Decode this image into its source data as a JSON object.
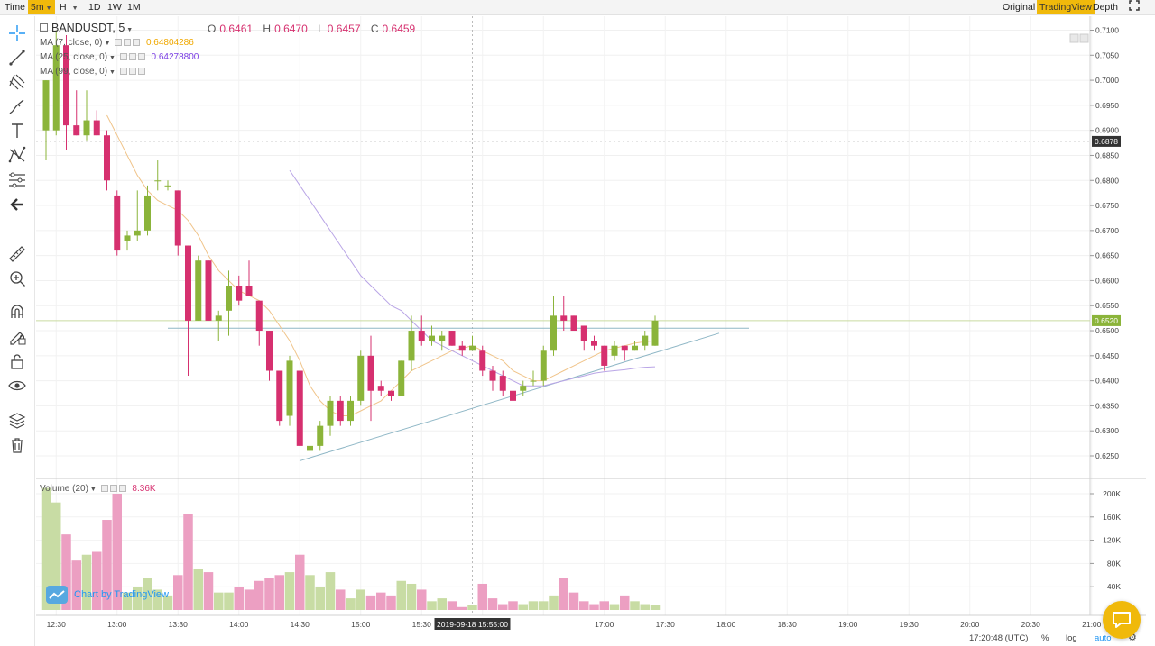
{
  "topbar": {
    "time_label": "Time",
    "intervals": [
      "5m",
      "H",
      "1D",
      "1W",
      "1M"
    ],
    "active_interval": "5m",
    "views": [
      "Original",
      "TradingView",
      "Depth"
    ],
    "active_view": "TradingView"
  },
  "legend": {
    "symbol": "BANDUSDT, 5",
    "ohlc": [
      {
        "k": "O",
        "v": "0.6461"
      },
      {
        "k": "H",
        "v": "0.6470"
      },
      {
        "k": "L",
        "v": "0.6457"
      },
      {
        "k": "C",
        "v": "0.6459"
      }
    ],
    "ma": [
      {
        "label": "MA (7, close, 0)",
        "value": "0.64804286",
        "color": "#f0a800"
      },
      {
        "label": "MA (25, close, 0)",
        "value": "0.64278800",
        "color": "#7b3fe4"
      },
      {
        "label": "MA (99, close, 0)",
        "value": "",
        "color": "#555555"
      }
    ],
    "volume_label": "Volume (20)",
    "volume_value": "8.36K"
  },
  "watermark": "Chart by TradingView",
  "crosshair_date": "2019-09-18 15:55:00",
  "bottombar": {
    "clock": "17:20:48 (UTC)",
    "percent": "%",
    "log": "log",
    "auto": "auto"
  },
  "colors": {
    "up": "#8bb43a",
    "down": "#d6306f",
    "up_vol": "#c8dca4",
    "down_vol": "#ec9fc2",
    "ma7": "#f0c48a",
    "ma25": "#b9a5e6",
    "accent": "#f0b90b"
  },
  "chart_data": {
    "type": "candlestick",
    "price_axis": {
      "ticks": [
        "0.7100",
        "0.7050",
        "0.7000",
        "0.6950",
        "0.6900",
        "0.6850",
        "0.6800",
        "0.6750",
        "0.6700",
        "0.6650",
        "0.6600",
        "0.6550",
        "0.6500",
        "0.6450",
        "0.6400",
        "0.6350",
        "0.6300",
        "0.6250"
      ],
      "range": [
        0.6225,
        0.7125
      ],
      "badges": [
        {
          "value": "0.6878",
          "kind": "crosshair"
        },
        {
          "value": "0.6520",
          "kind": "last"
        }
      ]
    },
    "volume_axis": {
      "ticks": [
        "200K",
        "160K",
        "120K",
        "80K",
        "40K"
      ],
      "range": [
        0,
        220000
      ]
    },
    "time_axis": {
      "ticks": [
        "12:30",
        "13:00",
        "13:30",
        "14:00",
        "14:30",
        "15:00",
        "15:30",
        "17:00",
        "17:30",
        "18:00",
        "18:30",
        "19:00",
        "19:30",
        "20:00",
        "20:30",
        "21:00"
      ],
      "start": "12:25",
      "interval_minutes": 5
    },
    "candles": [
      {
        "o": 0.69,
        "h": 0.7,
        "l": 0.684,
        "c": 0.7,
        "v": 210000
      },
      {
        "o": 0.69,
        "h": 0.71,
        "l": 0.689,
        "c": 0.707,
        "v": 185000
      },
      {
        "o": 0.707,
        "h": 0.709,
        "l": 0.686,
        "c": 0.691,
        "v": 130000
      },
      {
        "o": 0.691,
        "h": 0.698,
        "l": 0.689,
        "c": 0.689,
        "v": 85000
      },
      {
        "o": 0.689,
        "h": 0.698,
        "l": 0.688,
        "c": 0.692,
        "v": 95000
      },
      {
        "o": 0.692,
        "h": 0.694,
        "l": 0.689,
        "c": 0.689,
        "v": 100000
      },
      {
        "o": 0.689,
        "h": 0.69,
        "l": 0.678,
        "c": 0.68,
        "v": 155000
      },
      {
        "o": 0.677,
        "h": 0.678,
        "l": 0.665,
        "c": 0.666,
        "v": 200000
      },
      {
        "o": 0.668,
        "h": 0.67,
        "l": 0.666,
        "c": 0.669,
        "v": 30000
      },
      {
        "o": 0.669,
        "h": 0.678,
        "l": 0.668,
        "c": 0.67,
        "v": 40000
      },
      {
        "o": 0.67,
        "h": 0.679,
        "l": 0.669,
        "c": 0.677,
        "v": 55000
      },
      {
        "o": 0.68,
        "h": 0.684,
        "l": 0.678,
        "c": 0.68,
        "v": 35000
      },
      {
        "o": 0.679,
        "h": 0.68,
        "l": 0.678,
        "c": 0.679,
        "v": 25000
      },
      {
        "o": 0.678,
        "h": 0.678,
        "l": 0.665,
        "c": 0.667,
        "v": 60000
      },
      {
        "o": 0.667,
        "h": 0.667,
        "l": 0.641,
        "c": 0.652,
        "v": 165000
      },
      {
        "o": 0.652,
        "h": 0.665,
        "l": 0.652,
        "c": 0.664,
        "v": 70000
      },
      {
        "o": 0.664,
        "h": 0.664,
        "l": 0.652,
        "c": 0.652,
        "v": 65000
      },
      {
        "o": 0.652,
        "h": 0.654,
        "l": 0.648,
        "c": 0.653,
        "v": 30000
      },
      {
        "o": 0.654,
        "h": 0.662,
        "l": 0.649,
        "c": 0.659,
        "v": 30000
      },
      {
        "o": 0.659,
        "h": 0.661,
        "l": 0.655,
        "c": 0.656,
        "v": 40000
      },
      {
        "o": 0.659,
        "h": 0.664,
        "l": 0.657,
        "c": 0.657,
        "v": 35000
      },
      {
        "o": 0.656,
        "h": 0.656,
        "l": 0.647,
        "c": 0.65,
        "v": 50000
      },
      {
        "o": 0.65,
        "h": 0.65,
        "l": 0.64,
        "c": 0.642,
        "v": 55000
      },
      {
        "o": 0.642,
        "h": 0.642,
        "l": 0.631,
        "c": 0.632,
        "v": 60000
      },
      {
        "o": 0.633,
        "h": 0.645,
        "l": 0.631,
        "c": 0.644,
        "v": 65000
      },
      {
        "o": 0.642,
        "h": 0.642,
        "l": 0.627,
        "c": 0.627,
        "v": 95000
      },
      {
        "o": 0.626,
        "h": 0.628,
        "l": 0.625,
        "c": 0.627,
        "v": 60000
      },
      {
        "o": 0.627,
        "h": 0.632,
        "l": 0.626,
        "c": 0.631,
        "v": 40000
      },
      {
        "o": 0.631,
        "h": 0.637,
        "l": 0.629,
        "c": 0.636,
        "v": 65000
      },
      {
        "o": 0.636,
        "h": 0.637,
        "l": 0.631,
        "c": 0.632,
        "v": 35000
      },
      {
        "o": 0.632,
        "h": 0.637,
        "l": 0.631,
        "c": 0.636,
        "v": 20000
      },
      {
        "o": 0.636,
        "h": 0.646,
        "l": 0.635,
        "c": 0.645,
        "v": 35000
      },
      {
        "o": 0.645,
        "h": 0.649,
        "l": 0.632,
        "c": 0.638,
        "v": 25000
      },
      {
        "o": 0.639,
        "h": 0.64,
        "l": 0.637,
        "c": 0.638,
        "v": 30000
      },
      {
        "o": 0.638,
        "h": 0.638,
        "l": 0.636,
        "c": 0.637,
        "v": 25000
      },
      {
        "o": 0.637,
        "h": 0.644,
        "l": 0.637,
        "c": 0.644,
        "v": 50000
      },
      {
        "o": 0.644,
        "h": 0.653,
        "l": 0.642,
        "c": 0.65,
        "v": 45000
      },
      {
        "o": 0.65,
        "h": 0.653,
        "l": 0.647,
        "c": 0.648,
        "v": 35000
      },
      {
        "o": 0.648,
        "h": 0.651,
        "l": 0.647,
        "c": 0.649,
        "v": 15000
      },
      {
        "o": 0.648,
        "h": 0.65,
        "l": 0.646,
        "c": 0.649,
        "v": 20000
      },
      {
        "o": 0.65,
        "h": 0.65,
        "l": 0.647,
        "c": 0.647,
        "v": 15000
      },
      {
        "o": 0.647,
        "h": 0.648,
        "l": 0.645,
        "c": 0.646,
        "v": 5000
      },
      {
        "o": 0.646,
        "h": 0.649,
        "l": 0.646,
        "c": 0.647,
        "v": 8000
      },
      {
        "o": 0.646,
        "h": 0.647,
        "l": 0.641,
        "c": 0.642,
        "v": 45000
      },
      {
        "o": 0.642,
        "h": 0.643,
        "l": 0.638,
        "c": 0.64,
        "v": 20000
      },
      {
        "o": 0.641,
        "h": 0.642,
        "l": 0.637,
        "c": 0.638,
        "v": 10000
      },
      {
        "o": 0.638,
        "h": 0.64,
        "l": 0.635,
        "c": 0.636,
        "v": 15000
      },
      {
        "o": 0.638,
        "h": 0.64,
        "l": 0.637,
        "c": 0.639,
        "v": 10000
      },
      {
        "o": 0.64,
        "h": 0.642,
        "l": 0.639,
        "c": 0.64,
        "v": 15000
      },
      {
        "o": 0.64,
        "h": 0.647,
        "l": 0.639,
        "c": 0.646,
        "v": 15000
      },
      {
        "o": 0.646,
        "h": 0.657,
        "l": 0.645,
        "c": 0.653,
        "v": 25000
      },
      {
        "o": 0.653,
        "h": 0.657,
        "l": 0.65,
        "c": 0.652,
        "v": 55000
      },
      {
        "o": 0.653,
        "h": 0.653,
        "l": 0.65,
        "c": 0.65,
        "v": 30000
      },
      {
        "o": 0.651,
        "h": 0.651,
        "l": 0.646,
        "c": 0.648,
        "v": 15000
      },
      {
        "o": 0.648,
        "h": 0.649,
        "l": 0.646,
        "c": 0.647,
        "v": 10000
      },
      {
        "o": 0.647,
        "h": 0.647,
        "l": 0.642,
        "c": 0.643,
        "v": 15000
      },
      {
        "o": 0.645,
        "h": 0.648,
        "l": 0.644,
        "c": 0.647,
        "v": 10000
      },
      {
        "o": 0.647,
        "h": 0.647,
        "l": 0.644,
        "c": 0.646,
        "v": 25000
      },
      {
        "o": 0.646,
        "h": 0.648,
        "l": 0.646,
        "c": 0.647,
        "v": 15000
      },
      {
        "o": 0.647,
        "h": 0.65,
        "l": 0.646,
        "c": 0.649,
        "v": 10000
      },
      {
        "o": 0.647,
        "h": 0.653,
        "l": 0.647,
        "c": 0.652,
        "v": 8000
      }
    ],
    "ma7": [
      null,
      null,
      null,
      null,
      null,
      null,
      0.693,
      0.689,
      0.685,
      0.681,
      0.678,
      0.676,
      0.675,
      0.674,
      0.672,
      0.669,
      0.665,
      0.662,
      0.66,
      0.658,
      0.657,
      0.656,
      0.654,
      0.651,
      0.648,
      0.644,
      0.639,
      0.636,
      0.634,
      0.633,
      0.633,
      0.634,
      0.635,
      0.636,
      0.638,
      0.64,
      0.642,
      0.643,
      0.644,
      0.645,
      0.646,
      0.6465,
      0.647,
      0.646,
      0.645,
      0.644,
      0.642,
      0.641,
      0.64,
      0.64,
      0.641,
      0.642,
      0.643,
      0.644,
      0.645,
      0.646,
      0.6465,
      0.647,
      0.6475,
      0.6478,
      0.648
    ],
    "ma25": [
      null,
      null,
      null,
      null,
      null,
      null,
      null,
      null,
      null,
      null,
      null,
      null,
      null,
      null,
      null,
      null,
      null,
      null,
      null,
      null,
      null,
      null,
      null,
      null,
      0.682,
      0.679,
      0.676,
      0.673,
      0.67,
      0.667,
      0.664,
      0.661,
      0.659,
      0.657,
      0.655,
      0.654,
      0.652,
      0.65,
      0.648,
      0.647,
      0.646,
      0.645,
      0.644,
      0.643,
      0.642,
      0.641,
      0.64,
      0.639,
      0.639,
      0.639,
      0.6395,
      0.64,
      0.6405,
      0.641,
      0.6415,
      0.6418,
      0.642,
      0.6422,
      0.6425,
      0.6427,
      0.6428
    ]
  }
}
